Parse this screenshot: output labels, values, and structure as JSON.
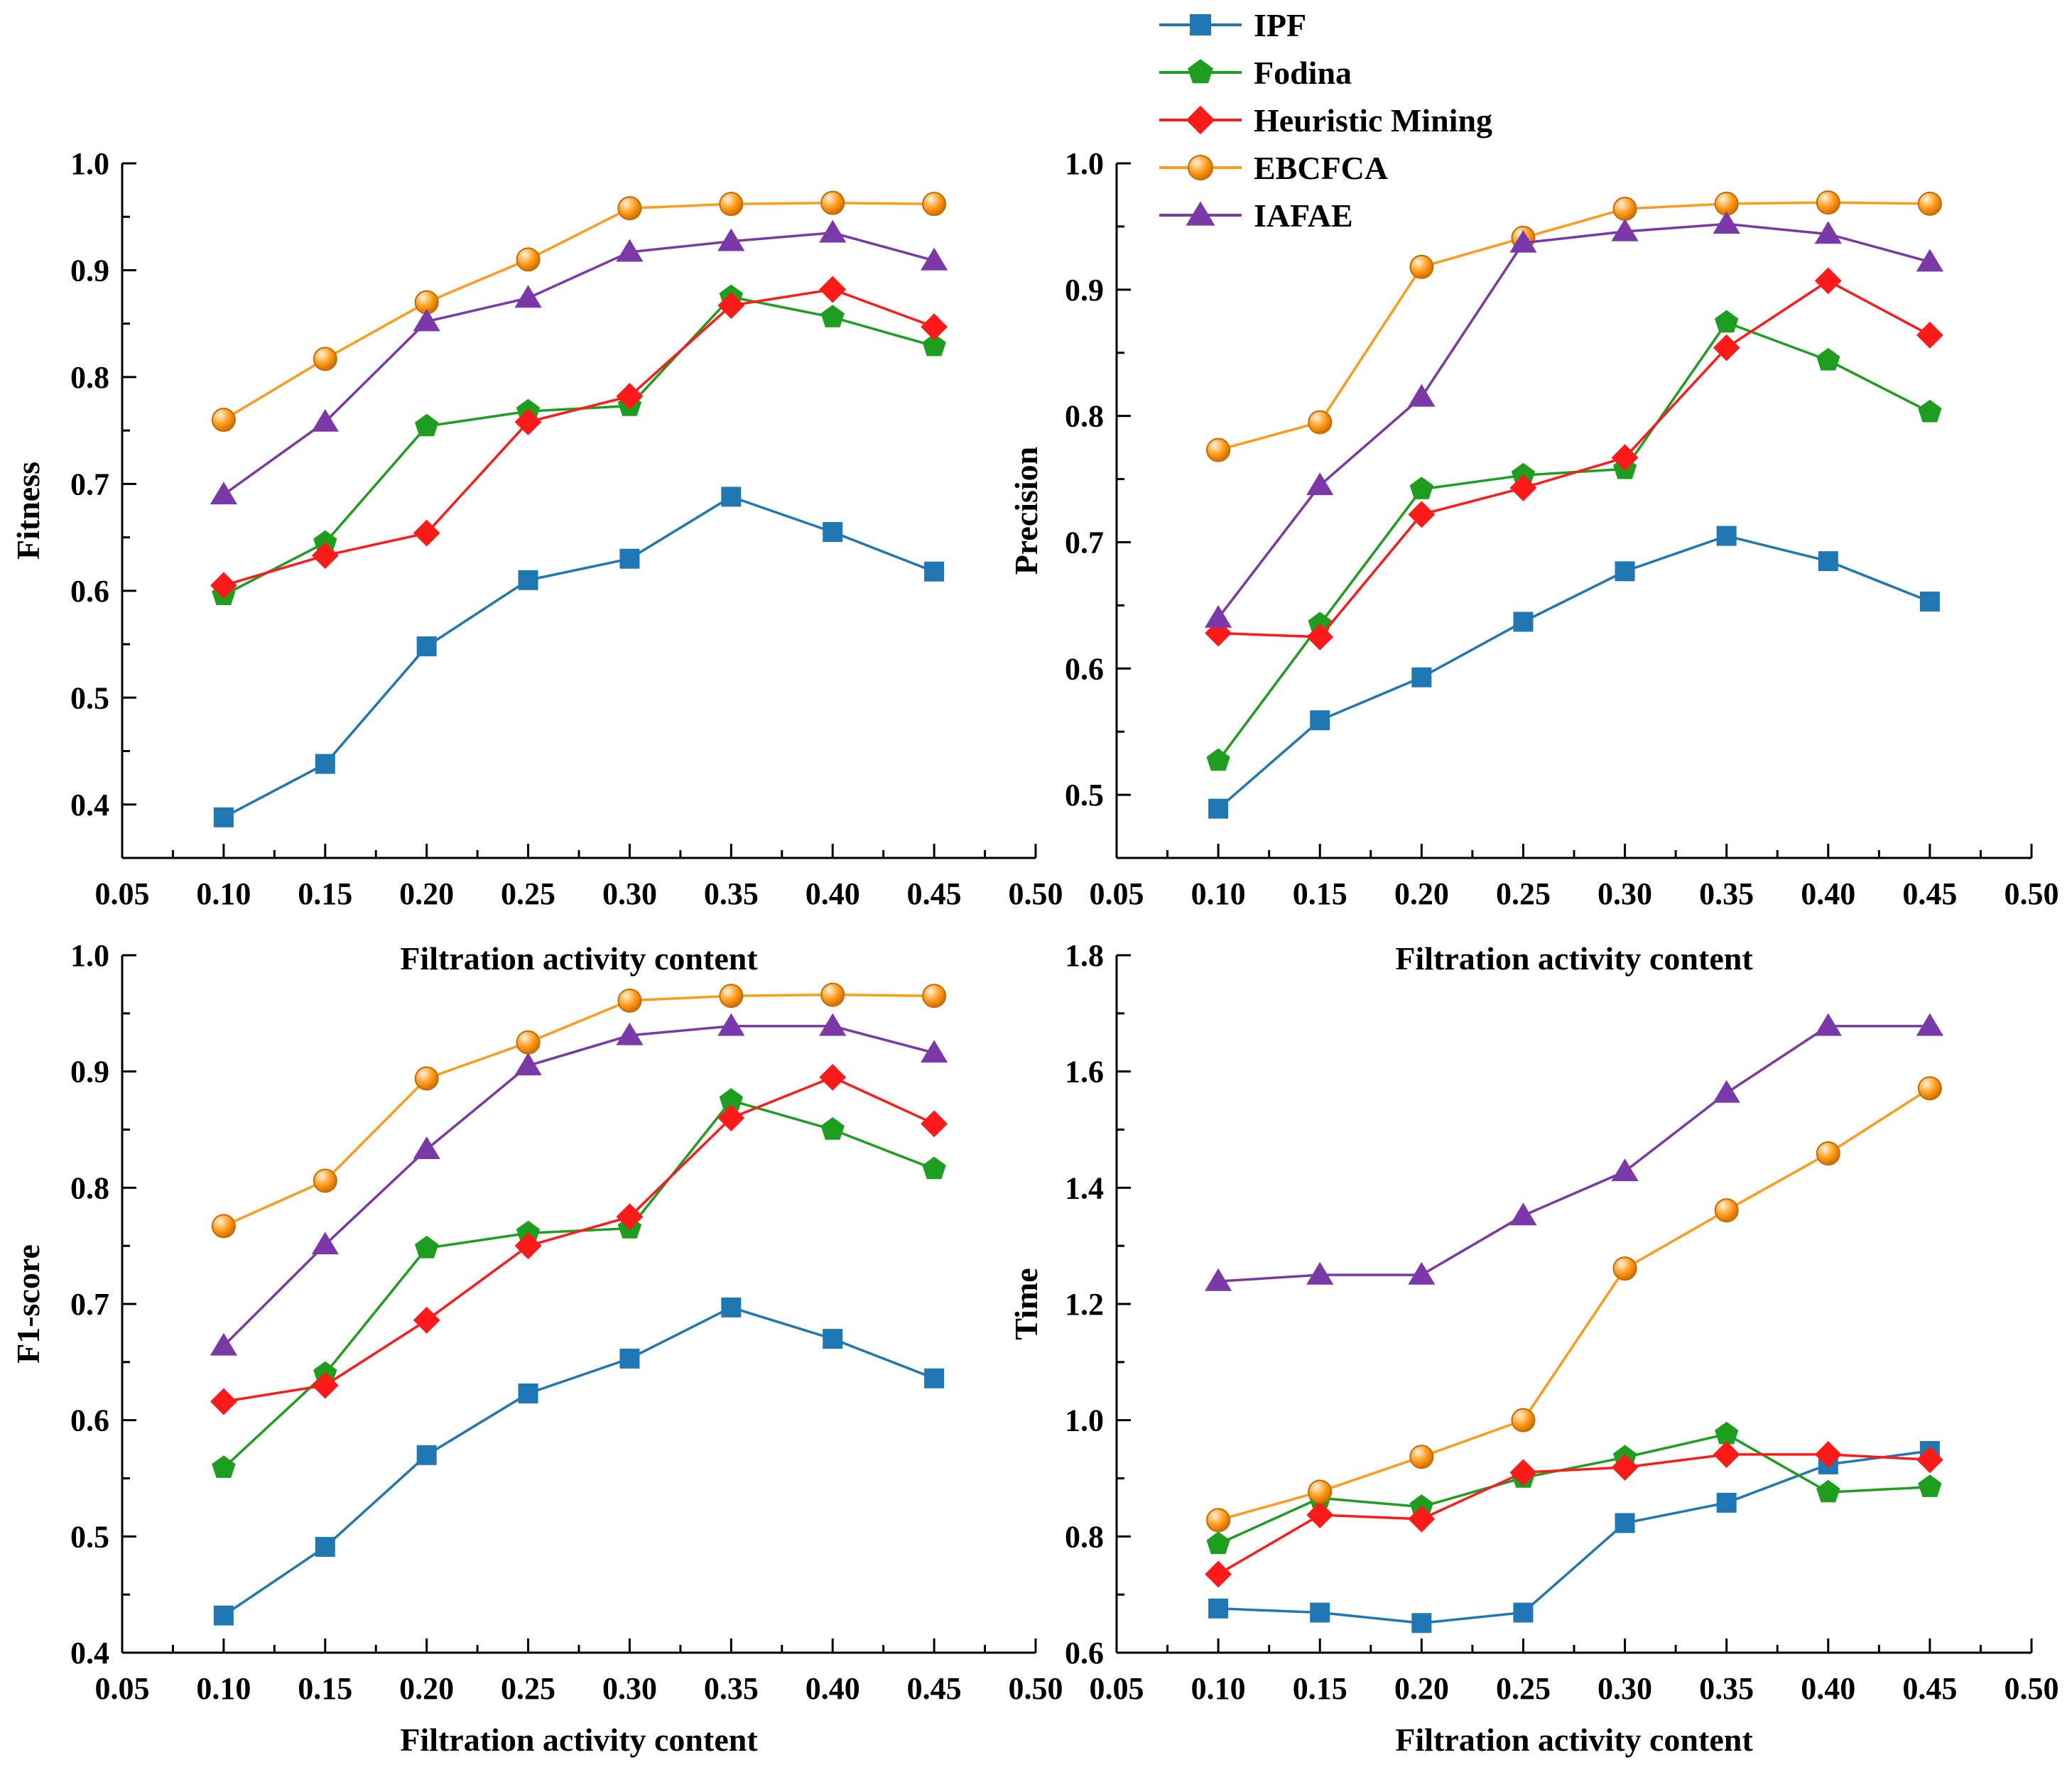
{
  "legend": [
    {
      "name": "IPF",
      "color": "#1f77b4",
      "marker": "square"
    },
    {
      "name": "Fodina",
      "color": "#1e9e1e",
      "marker": "pentagon"
    },
    {
      "name": "Heuristic Mining",
      "color": "#ff1a1a",
      "marker": "diamond"
    },
    {
      "name": "EBCFCA",
      "color": "#ff9b1a",
      "marker": "circle"
    },
    {
      "name": "IAFAE",
      "color": "#7b38a8",
      "marker": "triangle"
    }
  ],
  "chart_data": [
    {
      "type": "line",
      "title": "",
      "xlabel": "Filtration activity content",
      "ylabel": "Fitness",
      "xlim": [
        0.05,
        0.5
      ],
      "ylim": [
        0.35,
        1.0
      ],
      "x": [
        0.1,
        0.15,
        0.2,
        0.25,
        0.3,
        0.35,
        0.4,
        0.45
      ],
      "xticks": [
        "0.05",
        "0.10",
        "0.15",
        "0.20",
        "0.25",
        "0.30",
        "0.35",
        "0.40",
        "0.45",
        "0.50"
      ],
      "yticks": [
        "0.4",
        "0.5",
        "0.6",
        "0.7",
        "0.8",
        "0.9",
        "1.0"
      ],
      "series": [
        {
          "name": "IPF",
          "values": [
            0.388,
            0.438,
            0.548,
            0.61,
            0.63,
            0.688,
            0.655,
            0.618
          ]
        },
        {
          "name": "Fodina",
          "values": [
            0.596,
            0.645,
            0.754,
            0.768,
            0.773,
            0.875,
            0.856,
            0.829
          ]
        },
        {
          "name": "Heuristic Mining",
          "values": [
            0.605,
            0.633,
            0.654,
            0.758,
            0.782,
            0.867,
            0.882,
            0.847
          ]
        },
        {
          "name": "EBCFCA",
          "values": [
            0.76,
            0.817,
            0.87,
            0.91,
            0.958,
            0.962,
            0.963,
            0.962
          ]
        },
        {
          "name": "IAFAE",
          "values": [
            0.69,
            0.758,
            0.852,
            0.874,
            0.917,
            0.927,
            0.935,
            0.909
          ]
        }
      ]
    },
    {
      "type": "line",
      "title": "",
      "xlabel": "Filtration activity content",
      "ylabel": "Precision",
      "xlim": [
        0.05,
        0.5
      ],
      "ylim": [
        0.45,
        1.0
      ],
      "x": [
        0.1,
        0.15,
        0.2,
        0.25,
        0.3,
        0.35,
        0.4,
        0.45
      ],
      "xticks": [
        "0.05",
        "0.10",
        "0.15",
        "0.20",
        "0.25",
        "0.30",
        "0.35",
        "0.40",
        "0.45",
        "0.50"
      ],
      "yticks": [
        "0.5",
        "0.6",
        "0.7",
        "0.8",
        "0.9",
        "1.0"
      ],
      "series": [
        {
          "name": "IPF",
          "values": [
            0.489,
            0.559,
            0.593,
            0.637,
            0.677,
            0.705,
            0.685,
            0.653
          ]
        },
        {
          "name": "Fodina",
          "values": [
            0.527,
            0.635,
            0.742,
            0.753,
            0.758,
            0.874,
            0.844,
            0.803
          ]
        },
        {
          "name": "Heuristic Mining",
          "values": [
            0.628,
            0.625,
            0.722,
            0.743,
            0.767,
            0.854,
            0.907,
            0.864
          ]
        },
        {
          "name": "EBCFCA",
          "values": [
            0.773,
            0.795,
            0.918,
            0.941,
            0.964,
            0.968,
            0.969,
            0.968
          ]
        },
        {
          "name": "IAFAE",
          "values": [
            0.64,
            0.745,
            0.815,
            0.937,
            0.946,
            0.952,
            0.944,
            0.922
          ]
        }
      ]
    },
    {
      "type": "line",
      "title": "",
      "xlabel": "Filtration activity content",
      "ylabel": "F1-score",
      "xlim": [
        0.05,
        0.5
      ],
      "ylim": [
        0.4,
        1.0
      ],
      "x": [
        0.1,
        0.15,
        0.2,
        0.25,
        0.3,
        0.35,
        0.4,
        0.45
      ],
      "xticks": [
        "0.05",
        "0.10",
        "0.15",
        "0.20",
        "0.25",
        "0.30",
        "0.35",
        "0.40",
        "0.45",
        "0.50"
      ],
      "yticks": [
        "0.4",
        "0.5",
        "0.6",
        "0.7",
        "0.8",
        "0.9",
        "1.0"
      ],
      "series": [
        {
          "name": "IPF",
          "values": [
            0.432,
            0.491,
            0.57,
            0.623,
            0.653,
            0.697,
            0.67,
            0.636
          ]
        },
        {
          "name": "Fodina",
          "values": [
            0.559,
            0.64,
            0.748,
            0.761,
            0.765,
            0.875,
            0.85,
            0.816
          ]
        },
        {
          "name": "Heuristic Mining",
          "values": [
            0.616,
            0.63,
            0.686,
            0.75,
            0.775,
            0.86,
            0.895,
            0.855
          ]
        },
        {
          "name": "EBCFCA",
          "values": [
            0.767,
            0.806,
            0.894,
            0.925,
            0.961,
            0.965,
            0.966,
            0.965
          ]
        },
        {
          "name": "IAFAE",
          "values": [
            0.664,
            0.751,
            0.833,
            0.905,
            0.931,
            0.939,
            0.939,
            0.916
          ]
        }
      ]
    },
    {
      "type": "line",
      "title": "",
      "xlabel": "Filtration activity content",
      "ylabel": "Time",
      "xlim": [
        0.05,
        0.5
      ],
      "ylim": [
        0.6,
        1.8
      ],
      "x": [
        0.1,
        0.15,
        0.2,
        0.25,
        0.3,
        0.35,
        0.4,
        0.45
      ],
      "xticks": [
        "0.05",
        "0.10",
        "0.15",
        "0.20",
        "0.25",
        "0.30",
        "0.35",
        "0.40",
        "0.45",
        "0.50"
      ],
      "yticks": [
        "0.6",
        "0.8",
        "1.0",
        "1.2",
        "1.4",
        "1.6",
        "1.8"
      ],
      "series": [
        {
          "name": "IPF",
          "values": [
            0.676,
            0.669,
            0.651,
            0.669,
            0.823,
            0.858,
            0.924,
            0.947
          ]
        },
        {
          "name": "Fodina",
          "values": [
            0.787,
            0.866,
            0.851,
            0.901,
            0.936,
            0.976,
            0.876,
            0.885
          ]
        },
        {
          "name": "Heuristic Mining",
          "values": [
            0.735,
            0.837,
            0.83,
            0.91,
            0.919,
            0.941,
            0.941,
            0.932
          ]
        },
        {
          "name": "EBCFCA",
          "values": [
            0.828,
            0.877,
            0.937,
            1.0,
            1.261,
            1.361,
            1.459,
            1.571
          ]
        },
        {
          "name": "IAFAE",
          "values": [
            1.239,
            1.25,
            1.25,
            1.352,
            1.428,
            1.563,
            1.678,
            1.678
          ]
        }
      ]
    }
  ]
}
